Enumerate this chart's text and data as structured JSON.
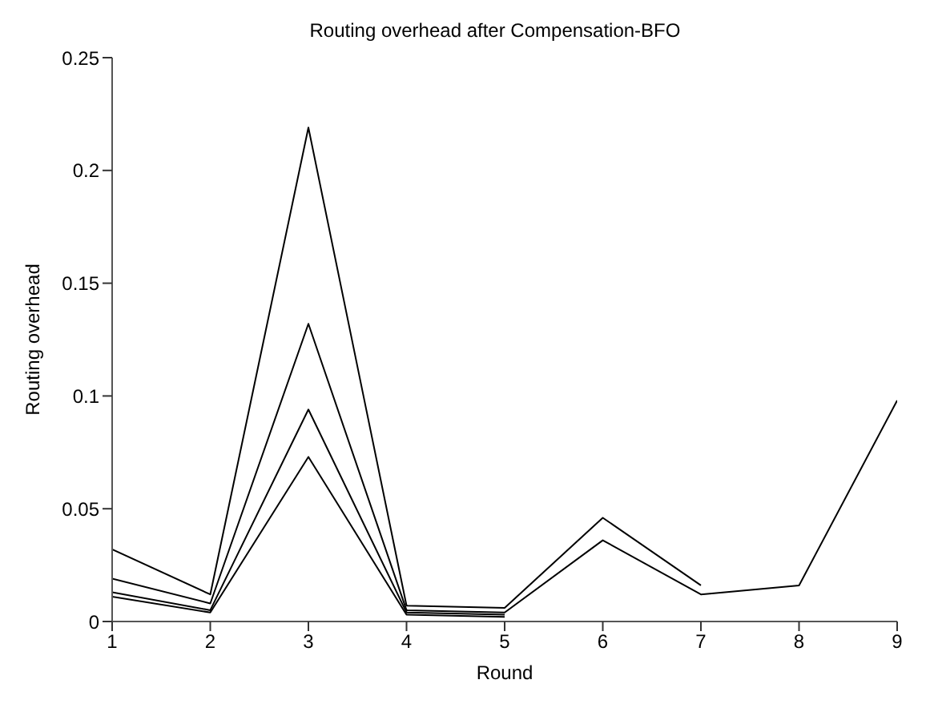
{
  "chart_data": {
    "type": "line",
    "title": "Routing overhead after Compensation-BFO",
    "xlabel": "Round",
    "ylabel": "Routing overhead",
    "x": [
      1,
      2,
      3,
      4,
      5,
      6,
      7,
      8,
      9
    ],
    "series": [
      {
        "color": "#000000",
        "values": [
          0.032,
          0.012,
          0.219,
          0.007,
          0.006,
          0.046,
          0.016,
          null,
          null
        ]
      },
      {
        "color": "#000000",
        "values": [
          0.019,
          0.008,
          0.132,
          0.005,
          0.004,
          0.036,
          0.012,
          0.016,
          0.098
        ]
      },
      {
        "color": "#000000",
        "values": [
          0.013,
          0.005,
          0.094,
          0.004,
          0.003,
          null,
          null,
          null,
          null
        ]
      },
      {
        "color": "#000000",
        "values": [
          0.011,
          0.004,
          0.073,
          0.003,
          0.002,
          null,
          null,
          null,
          null
        ]
      }
    ],
    "xlim": [
      1,
      9
    ],
    "xticks": [
      1,
      2,
      3,
      4,
      5,
      6,
      7,
      8,
      9
    ],
    "ylim": [
      0,
      0.25
    ],
    "yticks": [
      0,
      0.05,
      0.1,
      0.15,
      0.2,
      0.25
    ],
    "grid": false,
    "legend": false,
    "marker": "none",
    "line_style": "solid"
  }
}
